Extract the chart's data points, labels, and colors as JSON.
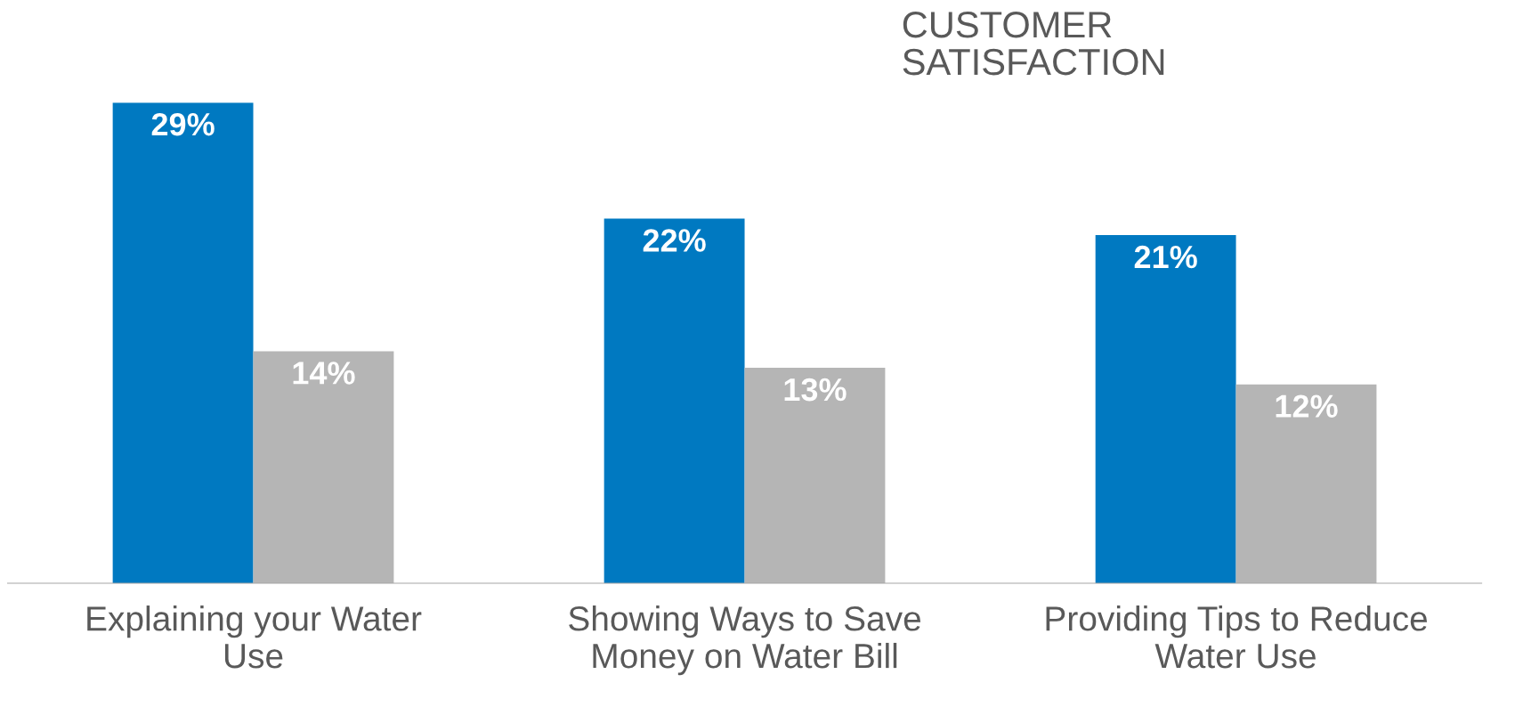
{
  "chart_data": {
    "type": "bar",
    "title": "CUSTOMER\nSATISFACTION",
    "categories": [
      "Explaining your Water\nUse",
      "Showing Ways to Save\nMoney on Water Bill",
      "Providing Tips to Reduce\nWater Use"
    ],
    "series": [
      {
        "color": "#0079c1",
        "values": [
          29,
          22,
          21
        ],
        "value_labels": [
          "29%",
          "22%",
          "21%"
        ]
      },
      {
        "color": "#b5b5b5",
        "values": [
          14,
          13,
          12
        ],
        "value_labels": [
          "14%",
          "13%",
          "12%"
        ]
      }
    ],
    "grid": false,
    "legend": false
  }
}
